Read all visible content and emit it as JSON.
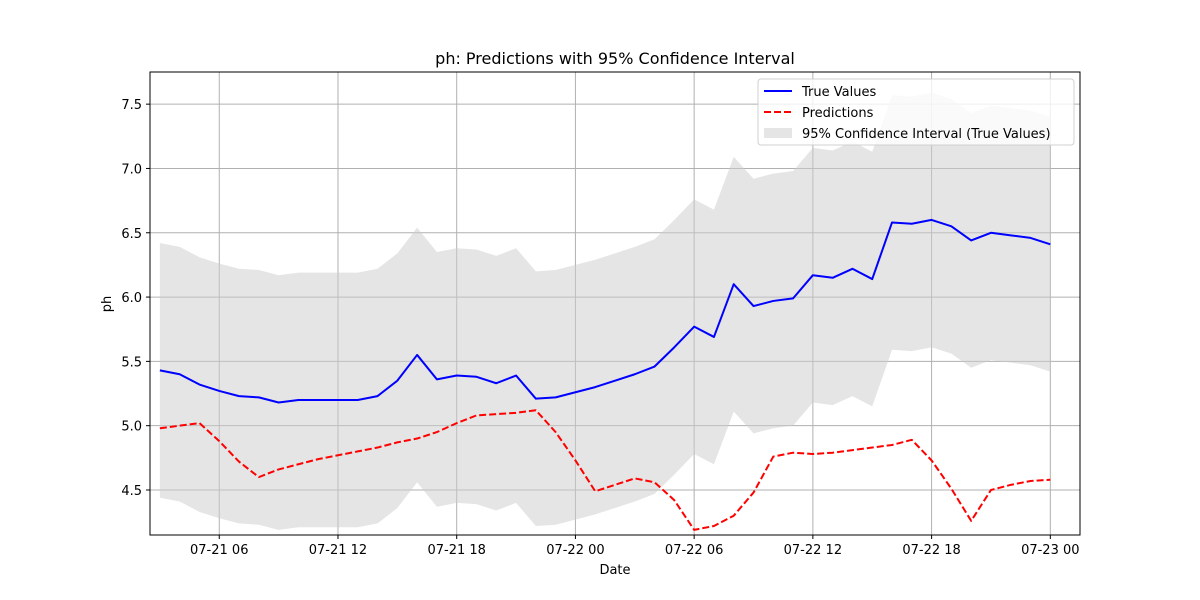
{
  "chart_data": {
    "type": "line",
    "title": "ph: Predictions with 95% Confidence Interval",
    "xlabel": "Date",
    "ylabel": "ph",
    "ylim": [
      4.15,
      7.75
    ],
    "xlim": [
      "2024-07-21 02:30",
      "2024-07-23 01:30"
    ],
    "grid": true,
    "legend_position": "top-right",
    "x_tick_labels": [
      "07-21 06",
      "07-21 12",
      "07-21 18",
      "07-22 00",
      "07-22 06",
      "07-22 12",
      "07-22 18",
      "07-23 00"
    ],
    "x_ticks": [
      "2024-07-21 06:00",
      "2024-07-21 12:00",
      "2024-07-21 18:00",
      "2024-07-22 00:00",
      "2024-07-22 06:00",
      "2024-07-22 12:00",
      "2024-07-22 18:00",
      "2024-07-23 00:00"
    ],
    "y_ticks": [
      4.5,
      5.0,
      5.5,
      6.0,
      6.5,
      7.0,
      7.5
    ],
    "y_tick_labels": [
      "4.5",
      "5.0",
      "5.5",
      "6.0",
      "6.5",
      "7.0",
      "7.5"
    ],
    "x": [
      "2024-07-21 03:00",
      "2024-07-21 04:00",
      "2024-07-21 05:00",
      "2024-07-21 06:00",
      "2024-07-21 07:00",
      "2024-07-21 08:00",
      "2024-07-21 09:00",
      "2024-07-21 10:00",
      "2024-07-21 11:00",
      "2024-07-21 12:00",
      "2024-07-21 13:00",
      "2024-07-21 14:00",
      "2024-07-21 15:00",
      "2024-07-21 16:00",
      "2024-07-21 17:00",
      "2024-07-21 18:00",
      "2024-07-21 19:00",
      "2024-07-21 20:00",
      "2024-07-21 21:00",
      "2024-07-21 22:00",
      "2024-07-21 23:00",
      "2024-07-22 00:00",
      "2024-07-22 01:00",
      "2024-07-22 02:00",
      "2024-07-22 03:00",
      "2024-07-22 04:00",
      "2024-07-22 05:00",
      "2024-07-22 06:00",
      "2024-07-22 07:00",
      "2024-07-22 08:00",
      "2024-07-22 09:00",
      "2024-07-22 10:00",
      "2024-07-22 11:00",
      "2024-07-22 12:00",
      "2024-07-22 13:00",
      "2024-07-22 14:00",
      "2024-07-22 15:00",
      "2024-07-22 16:00",
      "2024-07-22 17:00",
      "2024-07-22 18:00",
      "2024-07-22 19:00",
      "2024-07-22 20:00",
      "2024-07-22 21:00",
      "2024-07-22 22:00",
      "2024-07-22 23:00",
      "2024-07-23 00:00"
    ],
    "series": [
      {
        "name": "True Values",
        "color": "#0000ff",
        "style": "solid",
        "values": [
          5.43,
          5.4,
          5.32,
          5.27,
          5.23,
          5.22,
          5.18,
          5.2,
          5.2,
          5.2,
          5.2,
          5.23,
          5.35,
          5.55,
          5.36,
          5.39,
          5.38,
          5.33,
          5.39,
          5.21,
          5.22,
          5.26,
          5.3,
          5.35,
          5.4,
          5.46,
          5.61,
          5.77,
          5.69,
          6.1,
          5.93,
          5.97,
          5.99,
          6.17,
          6.15,
          6.22,
          6.14,
          6.58,
          6.57,
          6.6,
          6.55,
          6.44,
          6.5,
          6.48,
          6.46,
          6.41
        ]
      },
      {
        "name": "Predictions",
        "color": "#ff0000",
        "style": "dashed",
        "values": [
          4.98,
          5.0,
          5.02,
          4.88,
          4.72,
          4.6,
          4.66,
          4.7,
          4.74,
          4.77,
          4.8,
          4.83,
          4.87,
          4.9,
          4.95,
          5.02,
          5.08,
          5.09,
          5.1,
          5.12,
          4.95,
          4.73,
          4.49,
          4.54,
          4.59,
          4.56,
          4.42,
          4.19,
          4.22,
          4.3,
          4.48,
          4.76,
          4.79,
          4.78,
          4.79,
          4.81,
          4.83,
          4.85,
          4.89,
          4.73,
          4.51,
          4.26,
          4.5,
          4.54,
          4.57,
          4.58
        ]
      }
    ],
    "band": {
      "name": "95% Confidence Interval (True Values)",
      "color": "#cccccc",
      "lower": [
        4.44,
        4.41,
        4.33,
        4.28,
        4.24,
        4.23,
        4.19,
        4.21,
        4.21,
        4.21,
        4.21,
        4.24,
        4.36,
        4.56,
        4.37,
        4.4,
        4.39,
        4.34,
        4.4,
        4.22,
        4.23,
        4.27,
        4.31,
        4.36,
        4.41,
        4.47,
        4.62,
        4.78,
        4.7,
        5.11,
        4.94,
        4.98,
        5.0,
        5.18,
        5.16,
        5.23,
        5.15,
        5.59,
        5.58,
        5.61,
        5.56,
        5.45,
        5.51,
        5.49,
        5.47,
        5.42
      ],
      "upper": [
        6.42,
        6.39,
        6.31,
        6.26,
        6.22,
        6.21,
        6.17,
        6.19,
        6.19,
        6.19,
        6.19,
        6.22,
        6.34,
        6.54,
        6.35,
        6.38,
        6.37,
        6.32,
        6.38,
        6.2,
        6.21,
        6.25,
        6.29,
        6.34,
        6.39,
        6.45,
        6.6,
        6.76,
        6.68,
        7.09,
        6.92,
        6.96,
        6.98,
        7.16,
        7.14,
        7.21,
        7.13,
        7.57,
        7.56,
        7.59,
        7.54,
        7.43,
        7.49,
        7.47,
        7.45,
        7.4
      ]
    }
  }
}
